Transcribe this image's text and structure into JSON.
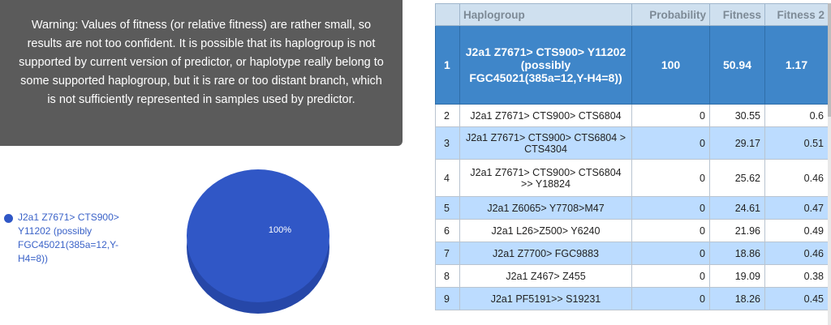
{
  "warning": {
    "text": "Warning: Values of fitness (or relative fitness) are rather small, so results are not too confident. It is possible that its haplogroup is not supported by current version of predictor, or haplotype really belong to some supported haplogroup, but it is rare or too distant branch, which is not sufficiently represented in samples used by predictor."
  },
  "chart_data": {
    "type": "pie",
    "slices": [
      {
        "label": "J2a1 Z7671> CTS900> Y11202 (possibly FGC45021(385a=12,Y-H4=8))",
        "value": 100,
        "display": "100%"
      }
    ],
    "legend_position": "left",
    "colors": [
      "#3057c6"
    ]
  },
  "table": {
    "headers": [
      "",
      "Haplogroup",
      "Probability",
      "Fitness",
      "Fitness 2"
    ],
    "rows": [
      {
        "rank": "1",
        "haplogroup": "J2a1 Z7671> CTS900> Y11202 (possibly FGC45021(385a=12,Y-H4=8))",
        "probability": "100",
        "fitness": "50.94",
        "fitness2": "1.17"
      },
      {
        "rank": "2",
        "haplogroup": "J2a1 Z7671> CTS900> CTS6804",
        "probability": "0",
        "fitness": "30.55",
        "fitness2": "0.6"
      },
      {
        "rank": "3",
        "haplogroup": "J2a1 Z7671> CTS900> CTS6804 > CTS4304",
        "probability": "0",
        "fitness": "29.17",
        "fitness2": "0.51"
      },
      {
        "rank": "4",
        "haplogroup": "J2a1 Z7671> CTS900> CTS6804 >> Y18824",
        "probability": "0",
        "fitness": "25.62",
        "fitness2": "0.46"
      },
      {
        "rank": "5",
        "haplogroup": "J2a1 Z6065> Y7708>M47",
        "probability": "0",
        "fitness": "24.61",
        "fitness2": "0.47"
      },
      {
        "rank": "6",
        "haplogroup": "J2a1 L26>Z500> Y6240",
        "probability": "0",
        "fitness": "21.96",
        "fitness2": "0.49"
      },
      {
        "rank": "7",
        "haplogroup": "J2a1 Z7700> FGC9883",
        "probability": "0",
        "fitness": "18.86",
        "fitness2": "0.46"
      },
      {
        "rank": "8",
        "haplogroup": "J2a1 Z467> Z455",
        "probability": "0",
        "fitness": "19.09",
        "fitness2": "0.38"
      },
      {
        "rank": "9",
        "haplogroup": "J2a1 PF5191>> S19231",
        "probability": "0",
        "fitness": "18.26",
        "fitness2": "0.45"
      }
    ]
  }
}
